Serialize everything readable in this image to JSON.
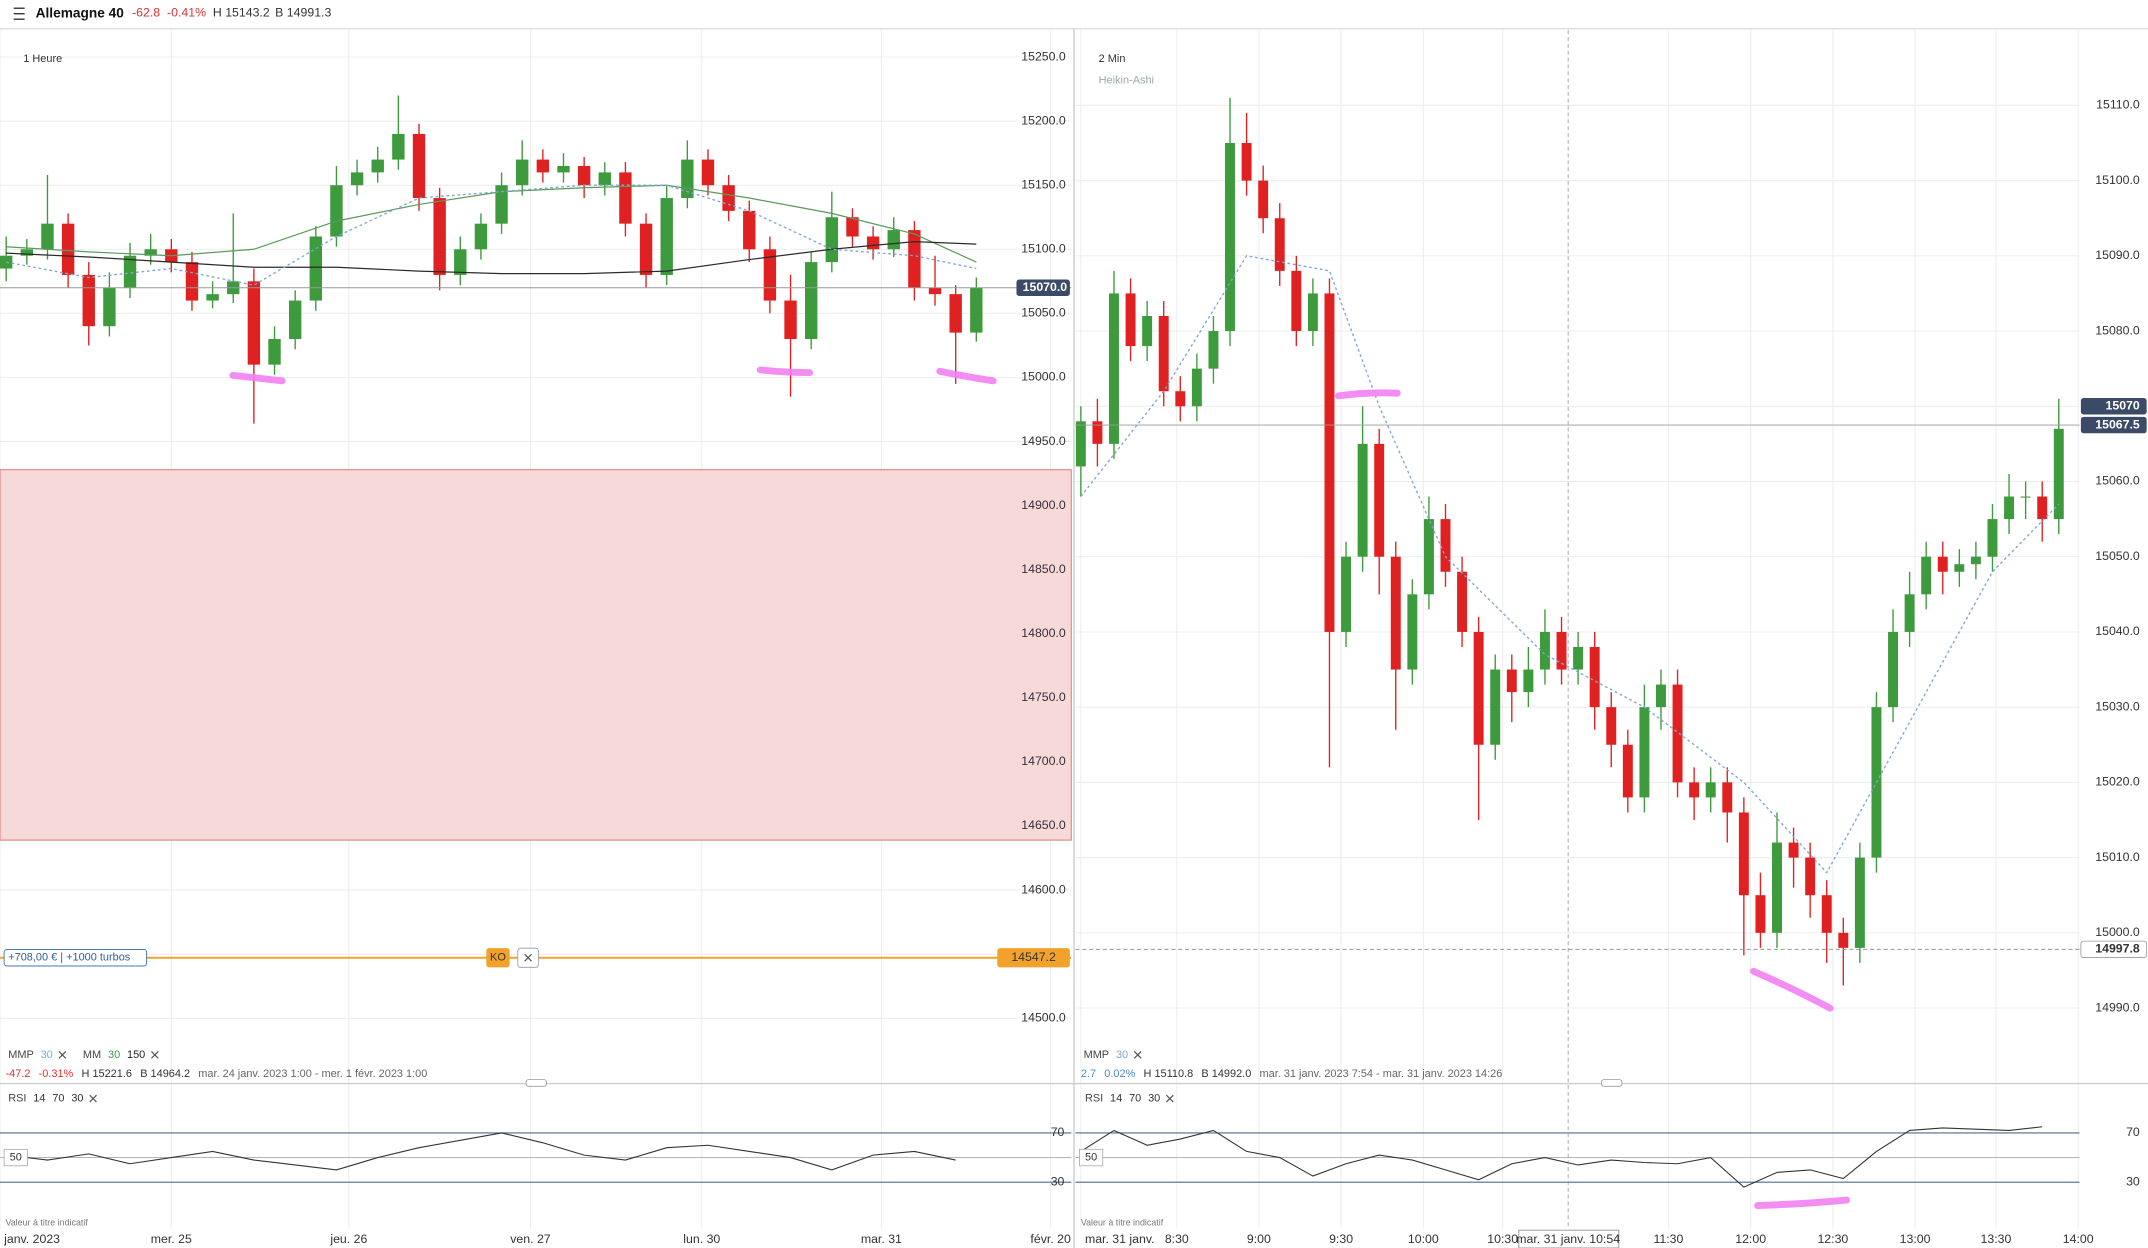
{
  "header": {
    "title": "Allemagne 40",
    "change": "-62.8",
    "change_pct": "-0.41%",
    "high": "H 15143.2",
    "low": "B 14991.3"
  },
  "chart_data": [
    {
      "type": "candlestick",
      "timeframe": "1 Heure",
      "open": [
        15085,
        15095,
        15100,
        15120,
        15080,
        15040,
        15070,
        15095,
        15100,
        15090,
        15060,
        15065,
        15075,
        15010,
        15030,
        15060,
        15110,
        15150,
        15160,
        15170,
        15190,
        15140,
        15080,
        15100,
        15120,
        15150,
        15170,
        15160,
        15165,
        15150,
        15160,
        15120,
        15080,
        15140,
        15170,
        15150,
        15130,
        15100,
        15060,
        15030,
        15090,
        15125,
        15110,
        15100,
        15115,
        15070,
        15065,
        15035
      ],
      "high": [
        15110,
        15108,
        15158,
        15128,
        15090,
        15082,
        15105,
        15112,
        15108,
        15098,
        15075,
        15128,
        15085,
        15040,
        15068,
        15118,
        15165,
        15170,
        15180,
        15220,
        15198,
        15148,
        15110,
        15128,
        15160,
        15185,
        15178,
        15175,
        15172,
        15168,
        15168,
        15128,
        15150,
        15185,
        15178,
        15158,
        15138,
        15110,
        15080,
        15098,
        15145,
        15132,
        15118,
        15125,
        15122,
        15095,
        15072,
        15078
      ],
      "low": [
        15075,
        15088,
        15092,
        15070,
        15025,
        15032,
        15062,
        15088,
        15082,
        15052,
        15054,
        15058,
        14964,
        15002,
        15022,
        15052,
        15102,
        15142,
        15152,
        15162,
        15130,
        15068,
        15072,
        15092,
        15112,
        15142,
        15152,
        15152,
        15140,
        15142,
        15110,
        15070,
        15072,
        15132,
        15142,
        15122,
        15090,
        15050,
        14985,
        15022,
        15082,
        15102,
        15092,
        15094,
        15060,
        15056,
        14995,
        15028
      ],
      "close": [
        15095,
        15100,
        15120,
        15080,
        15040,
        15070,
        15095,
        15100,
        15090,
        15060,
        15065,
        15075,
        15010,
        15030,
        15060,
        15110,
        15150,
        15160,
        15170,
        15190,
        15140,
        15080,
        15100,
        15120,
        15150,
        15170,
        15160,
        15165,
        15150,
        15160,
        15120,
        15080,
        15140,
        15170,
        15150,
        15130,
        15100,
        15060,
        15030,
        15090,
        15125,
        15110,
        15100,
        15115,
        15070,
        15065,
        15035,
        15070
      ],
      "up_color": "#3d9a3d",
      "down_color": "#e02121",
      "xlim": [
        -0.3,
        51.6
      ],
      "ylim": [
        14480,
        15271
      ],
      "xticks": [
        {
          "value": -0.3,
          "label": "janv. 2023"
        },
        {
          "value": 8,
          "label": "mer. 25"
        },
        {
          "value": 16.6,
          "label": "jeu. 26"
        },
        {
          "value": 25.4,
          "label": "ven. 27"
        },
        {
          "value": 33.7,
          "label": "lun. 30"
        },
        {
          "value": 42.4,
          "label": "mar. 31"
        },
        {
          "value": 50.6,
          "label": "févr. 20"
        }
      ],
      "yticks": [
        {
          "value": 14500,
          "label": "14500.0"
        },
        {
          "value": 14550,
          "label": "14550.0"
        },
        {
          "value": 14600,
          "label": "14600.0"
        },
        {
          "value": 14650,
          "label": "14650.0"
        },
        {
          "value": 14700,
          "label": "14700.0"
        },
        {
          "value": 14750,
          "label": "14750.0"
        },
        {
          "value": 14800,
          "label": "14800.0"
        },
        {
          "value": 14850,
          "label": "14850.0"
        },
        {
          "value": 14900,
          "label": "14900.0"
        },
        {
          "value": 14950,
          "label": "14950.0"
        },
        {
          "value": 15000,
          "label": "15000.0"
        },
        {
          "value": 15050,
          "label": "15050.0"
        },
        {
          "value": 15100,
          "label": "15100.0"
        },
        {
          "value": 15150,
          "label": "15150.0"
        },
        {
          "value": 15200,
          "label": "15200.0"
        },
        {
          "value": 15250,
          "label": "15250.0"
        }
      ],
      "zone": [
        14639,
        14928
      ],
      "overlays": [
        {
          "color": "#5a9a5a",
          "dashed": false,
          "x": [
            0,
            4,
            8,
            12,
            16,
            20,
            24,
            28,
            32,
            36,
            40,
            44,
            47
          ],
          "values": [
            15102,
            15098,
            15095,
            15100,
            15122,
            15135,
            15145,
            15148,
            15150,
            15140,
            15128,
            15112,
            15090
          ]
        },
        {
          "color": "#2b2b2b",
          "dashed": false,
          "x": [
            0,
            4,
            8,
            12,
            16,
            20,
            24,
            28,
            32,
            36,
            40,
            44,
            47
          ],
          "values": [
            15097,
            15094,
            15090,
            15086,
            15086,
            15083,
            15081,
            15081,
            15083,
            15092,
            15100,
            15106,
            15104
          ]
        },
        {
          "color": "#7fa7d6",
          "dashed": true,
          "x": [
            0,
            4,
            8,
            12,
            16,
            20,
            24,
            28,
            32,
            36,
            40,
            44,
            47
          ],
          "values": [
            15090,
            15078,
            15085,
            15072,
            15110,
            15140,
            15145,
            15150,
            15150,
            15130,
            15100,
            15095,
            15085
          ]
        }
      ],
      "price_lines": [
        {
          "value": 15070,
          "label": "15070.0",
          "style": "solid",
          "tag": "dark"
        }
      ],
      "ko": {
        "value": 14547.2,
        "label": "14547.2",
        "badge": "KO",
        "position": "+708,00 € | +1000 turbos"
      },
      "legend": [
        {
          "name": "MMP",
          "params": [
            30
          ],
          "colors": [
            "#7fa7d6"
          ]
        },
        {
          "name": "MM",
          "params": [
            30,
            150
          ],
          "colors": [
            "#3d9a3d",
            "#222222"
          ]
        }
      ],
      "info": [
        "-47.2",
        "-0.31%",
        "H 15221.6",
        "B 14964.2",
        "mar. 24 janv. 2023 1:00 - mer. 1 févr. 2023 1:00"
      ]
    },
    {
      "type": "candlestick",
      "timeframe": "2 Min",
      "style": "Heikin-Ashi",
      "open": [
        15062,
        15068,
        15065,
        15085,
        15078,
        15082,
        15072,
        15070,
        15075,
        15080,
        15105,
        15100,
        15095,
        15088,
        15080,
        15085,
        15040,
        15050,
        15065,
        15050,
        15035,
        15045,
        15055,
        15048,
        15040,
        15025,
        15035,
        15032,
        15035,
        15040,
        15035,
        15038,
        15030,
        15025,
        15018,
        15030,
        15033,
        15020,
        15018,
        15020,
        15016,
        15005,
        15000,
        15012,
        15010,
        15005,
        15000,
        14998,
        15010,
        15030,
        15040,
        15045,
        15050,
        15048,
        15049,
        15050,
        15055,
        15058,
        15058,
        15055
      ],
      "high": [
        15070,
        15071,
        15088,
        15087,
        15084,
        15084,
        15074,
        15077,
        15082,
        15111,
        15109,
        15102,
        15097,
        15090,
        15087,
        15087,
        15052,
        15070,
        15067,
        15052,
        15047,
        15058,
        15057,
        15050,
        15042,
        15037,
        15037,
        15038,
        15043,
        15042,
        15040,
        15040,
        15032,
        15027,
        15033,
        15035,
        15035,
        15022,
        15022,
        15022,
        15018,
        15008,
        15016,
        15014,
        15012,
        15007,
        15002,
        15012,
        15032,
        15043,
        15048,
        15052,
        15052,
        15051,
        15052,
        15057,
        15061,
        15060,
        15060,
        15071
      ],
      "low": [
        15058,
        15062,
        15063,
        15076,
        15076,
        15070,
        15068,
        15068,
        15073,
        15078,
        15098,
        15093,
        15086,
        15078,
        15078,
        15022,
        15038,
        15048,
        15045,
        15027,
        15033,
        15043,
        15046,
        15038,
        15015,
        15023,
        15028,
        15030,
        15033,
        15033,
        15033,
        15027,
        15022,
        15016,
        15016,
        15027,
        15018,
        15015,
        15016,
        15012,
        14997,
        14998,
        14998,
        15006,
        15002,
        14996,
        14993,
        14996,
        15008,
        15028,
        15038,
        15043,
        15045,
        15046,
        15047,
        15048,
        15053,
        15055,
        15052,
        15053
      ],
      "close": [
        15068,
        15065,
        15085,
        15078,
        15082,
        15072,
        15070,
        15075,
        15080,
        15105,
        15100,
        15095,
        15088,
        15080,
        15085,
        15040,
        15050,
        15065,
        15050,
        15035,
        15045,
        15055,
        15048,
        15040,
        15025,
        15035,
        15032,
        15035,
        15040,
        15035,
        15038,
        15030,
        15025,
        15018,
        15030,
        15033,
        15020,
        15018,
        15020,
        15016,
        15005,
        15000,
        15012,
        15010,
        15005,
        15000,
        14998,
        15010,
        15030,
        15040,
        15045,
        15050,
        15048,
        15049,
        15050,
        15055,
        15058,
        15058,
        15055,
        15067
      ],
      "up_color": "#3d9a3d",
      "down_color": "#e02121",
      "xlim": [
        -0.33,
        60.25
      ],
      "ylim": [
        14985.6,
        15120
      ],
      "xticks": [
        {
          "value": 0,
          "label": "mar. 31 janv."
        },
        {
          "value": 5.79,
          "label": "8:30"
        },
        {
          "value": 10.74,
          "label": "9:00"
        },
        {
          "value": 15.7,
          "label": "9:30"
        },
        {
          "value": 20.66,
          "label": "10:00"
        },
        {
          "value": 25.45,
          "label": "10:30"
        },
        {
          "value": 35.45,
          "label": "11:30"
        },
        {
          "value": 40.41,
          "label": "12:00"
        },
        {
          "value": 45.37,
          "label": "12:30"
        },
        {
          "value": 50.33,
          "label": "13:00"
        },
        {
          "value": 55.21,
          "label": "13:30"
        },
        {
          "value": 60.17,
          "label": "14:00"
        }
      ],
      "yticks": [
        {
          "value": 14990,
          "label": "14990.0"
        },
        {
          "value": 15000,
          "label": "15000.0"
        },
        {
          "value": 15010,
          "label": "15010.0"
        },
        {
          "value": 15020,
          "label": "15020.0"
        },
        {
          "value": 15030,
          "label": "15030.0"
        },
        {
          "value": 15040,
          "label": "15040.0"
        },
        {
          "value": 15050,
          "label": "15050.0"
        },
        {
          "value": 15060,
          "label": "15060.0"
        },
        {
          "value": 15070,
          "label": "15070.0"
        },
        {
          "value": 15080,
          "label": "15080.0"
        },
        {
          "value": 15090,
          "label": "15090.0"
        },
        {
          "value": 15100,
          "label": "15100.0"
        },
        {
          "value": 15110,
          "label": "15110.0"
        }
      ],
      "overlays": [
        {
          "color": "#7fa7d6",
          "dashed": true,
          "x": [
            0,
            5,
            10,
            15,
            18,
            22,
            28,
            34,
            40,
            45,
            50,
            55,
            59
          ],
          "values": [
            15058,
            15072,
            15090,
            15088,
            15070,
            15050,
            15037,
            15030,
            15020,
            15008,
            15028,
            15048,
            15057
          ]
        }
      ],
      "price_lines": [
        {
          "value": 15070,
          "label": "15070",
          "style": "none",
          "tag": "dark"
        },
        {
          "value": 15067.5,
          "label": "15067.5",
          "style": "solid",
          "tag": "dark"
        },
        {
          "value": 14997.8,
          "label": "14997.8",
          "style": "dashed",
          "tag": "light"
        }
      ],
      "crosshair": {
        "x": 29.4,
        "label": "mar. 31 janv. 10:54"
      },
      "legend": [
        {
          "name": "MMP",
          "params": [
            30
          ],
          "colors": [
            "#7fa7d6"
          ]
        }
      ],
      "info": [
        "2.7",
        "0.02%",
        "H 15110.8",
        "B 14992.0",
        "mar. 31 janv. 2023 7:54 - mar. 31 janv. 2023 14:26"
      ]
    },
    {
      "type": "line",
      "title": "RSI",
      "params": [
        14,
        70,
        30
      ],
      "xlim": [
        -0.3,
        51.6
      ],
      "ylim": [
        0,
        100
      ],
      "yticks": [
        30,
        70
      ],
      "midline": 50,
      "color": "#333333",
      "x": [
        0,
        2,
        4,
        6,
        8,
        10,
        12,
        14,
        16,
        18,
        20,
        22,
        24,
        26,
        28,
        30,
        32,
        34,
        36,
        38,
        40,
        42,
        44,
        46
      ],
      "values": [
        52,
        48,
        53,
        45,
        50,
        55,
        48,
        44,
        40,
        50,
        58,
        64,
        70,
        62,
        52,
        48,
        58,
        60,
        55,
        50,
        40,
        52,
        55,
        48
      ],
      "note": "Valeur à titre indicatif"
    },
    {
      "type": "line",
      "title": "RSI",
      "params": [
        14,
        70,
        30
      ],
      "xlim": [
        -0.33,
        60.25
      ],
      "ylim": [
        0,
        100
      ],
      "yticks": [
        30,
        70
      ],
      "midline": 50,
      "color": "#333333",
      "x": [
        0,
        2,
        4,
        6,
        8,
        10,
        12,
        14,
        16,
        18,
        20,
        22,
        24,
        26,
        28,
        30,
        32,
        34,
        36,
        38,
        40,
        42,
        44,
        46,
        48,
        50,
        52,
        54,
        56,
        58
      ],
      "values": [
        55,
        72,
        60,
        65,
        72,
        55,
        50,
        35,
        45,
        52,
        48,
        40,
        32,
        45,
        50,
        44,
        48,
        46,
        45,
        50,
        26,
        38,
        40,
        33,
        55,
        72,
        74,
        73,
        72,
        75
      ],
      "note": "Valeur à titre indicatif"
    }
  ]
}
